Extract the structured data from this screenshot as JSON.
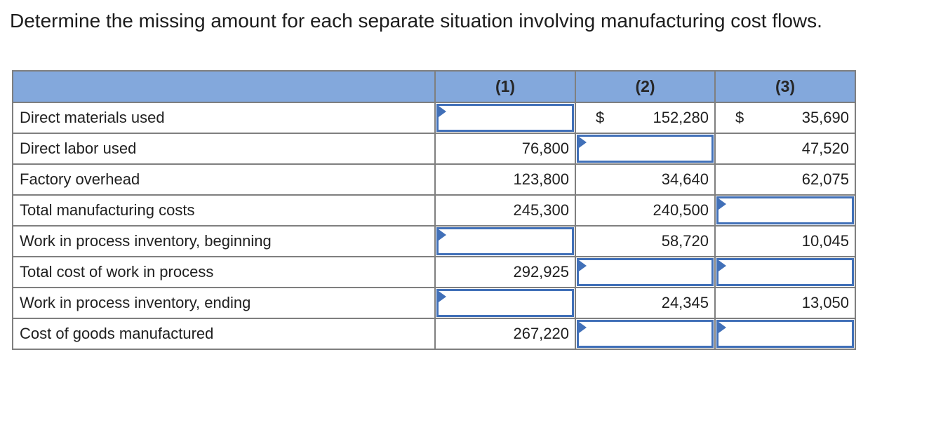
{
  "title": "Determine the missing amount for each separate situation involving manufacturing cost flows.",
  "table": {
    "header": {
      "label_col": "",
      "col1": "(1)",
      "col2": "(2)",
      "col3": "(3)"
    },
    "rows": [
      {
        "label": "Direct materials used",
        "cells": [
          {
            "type": "input"
          },
          {
            "type": "value",
            "prefix": "$",
            "value": "152,280"
          },
          {
            "type": "value",
            "prefix": "$",
            "value": "35,690"
          }
        ]
      },
      {
        "label": "Direct labor used",
        "cells": [
          {
            "type": "value",
            "value": "76,800"
          },
          {
            "type": "input"
          },
          {
            "type": "value",
            "value": "47,520"
          }
        ]
      },
      {
        "label": "Factory overhead",
        "cells": [
          {
            "type": "value",
            "value": "123,800"
          },
          {
            "type": "value",
            "value": "34,640"
          },
          {
            "type": "value",
            "value": "62,075"
          }
        ]
      },
      {
        "label": "Total manufacturing costs",
        "cells": [
          {
            "type": "value",
            "value": "245,300"
          },
          {
            "type": "value",
            "value": "240,500"
          },
          {
            "type": "input"
          }
        ]
      },
      {
        "label": "Work in process inventory, beginning",
        "cells": [
          {
            "type": "input"
          },
          {
            "type": "value",
            "value": "58,720"
          },
          {
            "type": "value",
            "value": "10,045"
          }
        ]
      },
      {
        "label": "Total cost of work in process",
        "cells": [
          {
            "type": "value",
            "value": "292,925"
          },
          {
            "type": "input"
          },
          {
            "type": "input"
          }
        ]
      },
      {
        "label": "Work in process inventory, ending",
        "cells": [
          {
            "type": "input"
          },
          {
            "type": "value",
            "value": "24,345"
          },
          {
            "type": "value",
            "value": "13,050"
          }
        ]
      },
      {
        "label": "Cost of goods manufactured",
        "cells": [
          {
            "type": "value",
            "value": "267,220"
          },
          {
            "type": "input"
          },
          {
            "type": "input"
          }
        ]
      }
    ]
  },
  "icons": {
    "input_flag": "blue triangle pennant marking an answer cell"
  },
  "colors": {
    "header_bg": "#83A8DC",
    "grid_border": "#7F7F7F",
    "input_border": "#4170B8",
    "text": "#1F1F1F"
  }
}
